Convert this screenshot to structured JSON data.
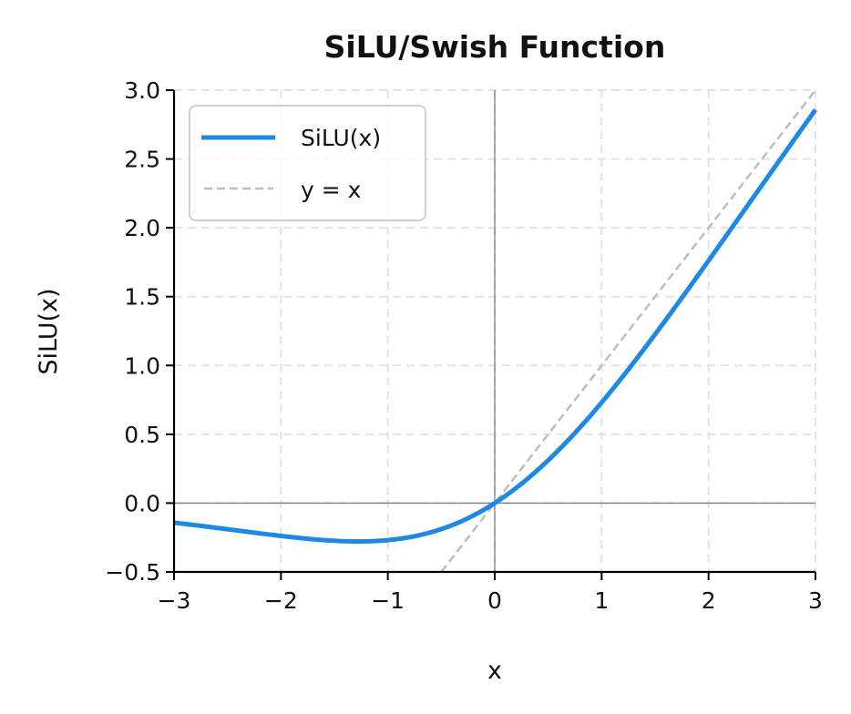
{
  "chart_data": {
    "type": "line",
    "title": "SiLU/Swish Function",
    "xlabel": "x",
    "ylabel": "SiLU(x)",
    "xlim": [
      -3,
      3
    ],
    "ylim": [
      -0.5,
      3.0
    ],
    "xticks": [
      -3,
      -2,
      -1,
      0,
      1,
      2,
      3
    ],
    "xtick_labels": [
      "−3",
      "−2",
      "−1",
      "0",
      "1",
      "2",
      "3"
    ],
    "yticks": [
      -0.5,
      0.0,
      0.5,
      1.0,
      1.5,
      2.0,
      2.5,
      3.0
    ],
    "ytick_labels": [
      "−0.5",
      "0.0",
      "0.5",
      "1.0",
      "1.5",
      "2.0",
      "2.5",
      "3.0"
    ],
    "grid": true,
    "legend_position": "upper left",
    "series": [
      {
        "name": "SiLU(x)",
        "style": "solid",
        "color": "#1e88e5",
        "x": [
          -3,
          -2.5,
          -2,
          -1.5,
          -1.278,
          -1,
          -0.5,
          0,
          0.5,
          1,
          1.5,
          2,
          2.5,
          3
        ],
        "y": [
          -0.142,
          -0.189,
          -0.238,
          -0.274,
          -0.278,
          -0.269,
          -0.189,
          0.0,
          0.311,
          0.731,
          1.226,
          1.762,
          2.317,
          2.858
        ]
      },
      {
        "name": "y = x",
        "style": "dashed",
        "color": "#bdbdbd",
        "x": [
          -0.5,
          3
        ],
        "y": [
          -0.5,
          3
        ]
      }
    ],
    "reference_lines": [
      {
        "axis": "x",
        "value": 0,
        "color": "#808080"
      },
      {
        "axis": "y",
        "value": 0,
        "color": "#808080"
      }
    ]
  }
}
